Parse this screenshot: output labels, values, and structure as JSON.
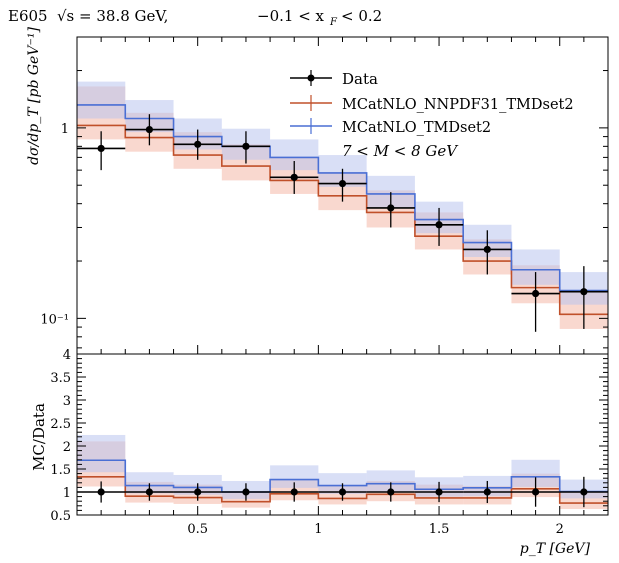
{
  "title": "E605 √s = 38.8 GeV, −0.1 < x_F < 0.2",
  "title_parts": {
    "experiment": "E605",
    "sqrt_s_label": "√s = 38.8 GeV,",
    "xf_range": "−0.1 < x",
    "xf_sub": "F",
    "xf_tail": "< 0.2"
  },
  "colors": {
    "data": "#000000",
    "nnpdf": "#c0502a",
    "nnpdf_band": "#f4b8a8",
    "tmd": "#4a6fd4",
    "tmd_band": "#b9c4ef"
  },
  "legend": {
    "entries": [
      "Data",
      "MCatNLO_NNPDF31_TMDset2",
      "MCatNLO_TMDset2"
    ],
    "note": "7 < M < 8 GeV"
  },
  "chart_data": [
    {
      "type": "line",
      "panel": "main",
      "ylabel": "dσ/dp_T [pb GeV⁻¹]",
      "yscale": "log",
      "ylim": [
        0.065,
        3.0
      ],
      "xlim": [
        0,
        2.2
      ],
      "ytick_labels": [
        "1",
        "10⁻¹"
      ],
      "ytick_values": [
        1,
        0.1
      ],
      "bin_edges": [
        0,
        0.2,
        0.4,
        0.6,
        0.8,
        1.0,
        1.2,
        1.4,
        1.6,
        1.8,
        2.0,
        2.2
      ],
      "data": {
        "name": "Data",
        "x": [
          0.1,
          0.3,
          0.5,
          0.7,
          0.9,
          1.1,
          1.3,
          1.5,
          1.7,
          1.9,
          2.1
        ],
        "y": [
          0.78,
          0.98,
          0.82,
          0.8,
          0.55,
          0.51,
          0.38,
          0.31,
          0.23,
          0.135,
          0.138
        ],
        "err_low": [
          0.18,
          0.17,
          0.14,
          0.15,
          0.1,
          0.1,
          0.08,
          0.07,
          0.06,
          0.05,
          0.05
        ],
        "err_high": [
          0.18,
          0.2,
          0.16,
          0.16,
          0.12,
          0.1,
          0.08,
          0.07,
          0.06,
          0.04,
          0.05
        ]
      },
      "series": [
        {
          "name": "MCatNLO_NNPDF31_TMDset2",
          "values": [
            1.03,
            0.89,
            0.72,
            0.63,
            0.53,
            0.44,
            0.36,
            0.27,
            0.2,
            0.145,
            0.105
          ],
          "band_low": [
            0.87,
            0.75,
            0.61,
            0.53,
            0.45,
            0.37,
            0.3,
            0.23,
            0.17,
            0.12,
            0.088
          ],
          "band_high": [
            1.65,
            1.2,
            0.95,
            0.82,
            0.7,
            0.58,
            0.47,
            0.36,
            0.26,
            0.19,
            0.14
          ]
        },
        {
          "name": "MCatNLO_TMDset2",
          "values": [
            1.32,
            1.12,
            0.9,
            0.8,
            0.7,
            0.58,
            0.45,
            0.33,
            0.25,
            0.18,
            0.14
          ],
          "band_low": [
            1.12,
            0.95,
            0.77,
            0.68,
            0.6,
            0.49,
            0.38,
            0.28,
            0.21,
            0.15,
            0.118
          ],
          "band_high": [
            1.75,
            1.4,
            1.12,
            0.99,
            0.87,
            0.72,
            0.56,
            0.41,
            0.31,
            0.23,
            0.175
          ]
        }
      ]
    },
    {
      "type": "line",
      "panel": "ratio",
      "xlabel": "p_T [GeV]",
      "ylabel": "MC/Data",
      "ylim": [
        0.5,
        4.0
      ],
      "xlim": [
        0,
        2.2
      ],
      "yticks": [
        "0.5",
        "1",
        "1.5",
        "2",
        "2.5",
        "3",
        "3.5",
        "4"
      ],
      "ytick_values": [
        0.5,
        1,
        1.5,
        2,
        2.5,
        3,
        3.5,
        4
      ],
      "xticks": [
        "0.5",
        "1",
        "1.5",
        "2"
      ],
      "xtick_values": [
        0.5,
        1,
        1.5,
        2
      ],
      "bin_edges": [
        0,
        0.2,
        0.4,
        0.6,
        0.8,
        1.0,
        1.2,
        1.4,
        1.6,
        1.8,
        2.0,
        2.2
      ],
      "data": {
        "name": "Data",
        "x": [
          0.1,
          0.3,
          0.5,
          0.7,
          0.9,
          1.1,
          1.3,
          1.5,
          1.7,
          1.9,
          2.1
        ],
        "y": [
          1,
          1,
          1,
          1,
          1,
          1,
          1,
          1,
          1,
          1,
          1
        ],
        "err": [
          0.23,
          0.19,
          0.19,
          0.19,
          0.21,
          0.19,
          0.21,
          0.22,
          0.24,
          0.32,
          0.33
        ]
      },
      "series": [
        {
          "name": "MCatNLO_NNPDF31_TMDset2",
          "values": [
            1.33,
            0.91,
            0.88,
            0.79,
            0.96,
            0.86,
            0.95,
            0.87,
            0.87,
            1.07,
            0.76
          ],
          "band_low": [
            1.12,
            0.77,
            0.74,
            0.66,
            0.82,
            0.73,
            0.8,
            0.73,
            0.73,
            0.89,
            0.63
          ],
          "band_high": [
            2.1,
            1.22,
            1.16,
            1.02,
            1.27,
            1.13,
            1.24,
            1.16,
            1.13,
            1.4,
            1.01
          ]
        },
        {
          "name": "MCatNLO_TMDset2",
          "values": [
            1.69,
            1.14,
            1.1,
            1.0,
            1.27,
            1.14,
            1.18,
            1.06,
            1.09,
            1.33,
            1.01
          ],
          "band_low": [
            1.43,
            0.97,
            0.94,
            0.85,
            1.09,
            0.96,
            1.0,
            0.9,
            0.91,
            1.11,
            0.86
          ],
          "band_high": [
            2.24,
            1.43,
            1.37,
            1.24,
            1.58,
            1.41,
            1.47,
            1.32,
            1.35,
            1.7,
            1.27
          ]
        }
      ]
    }
  ]
}
